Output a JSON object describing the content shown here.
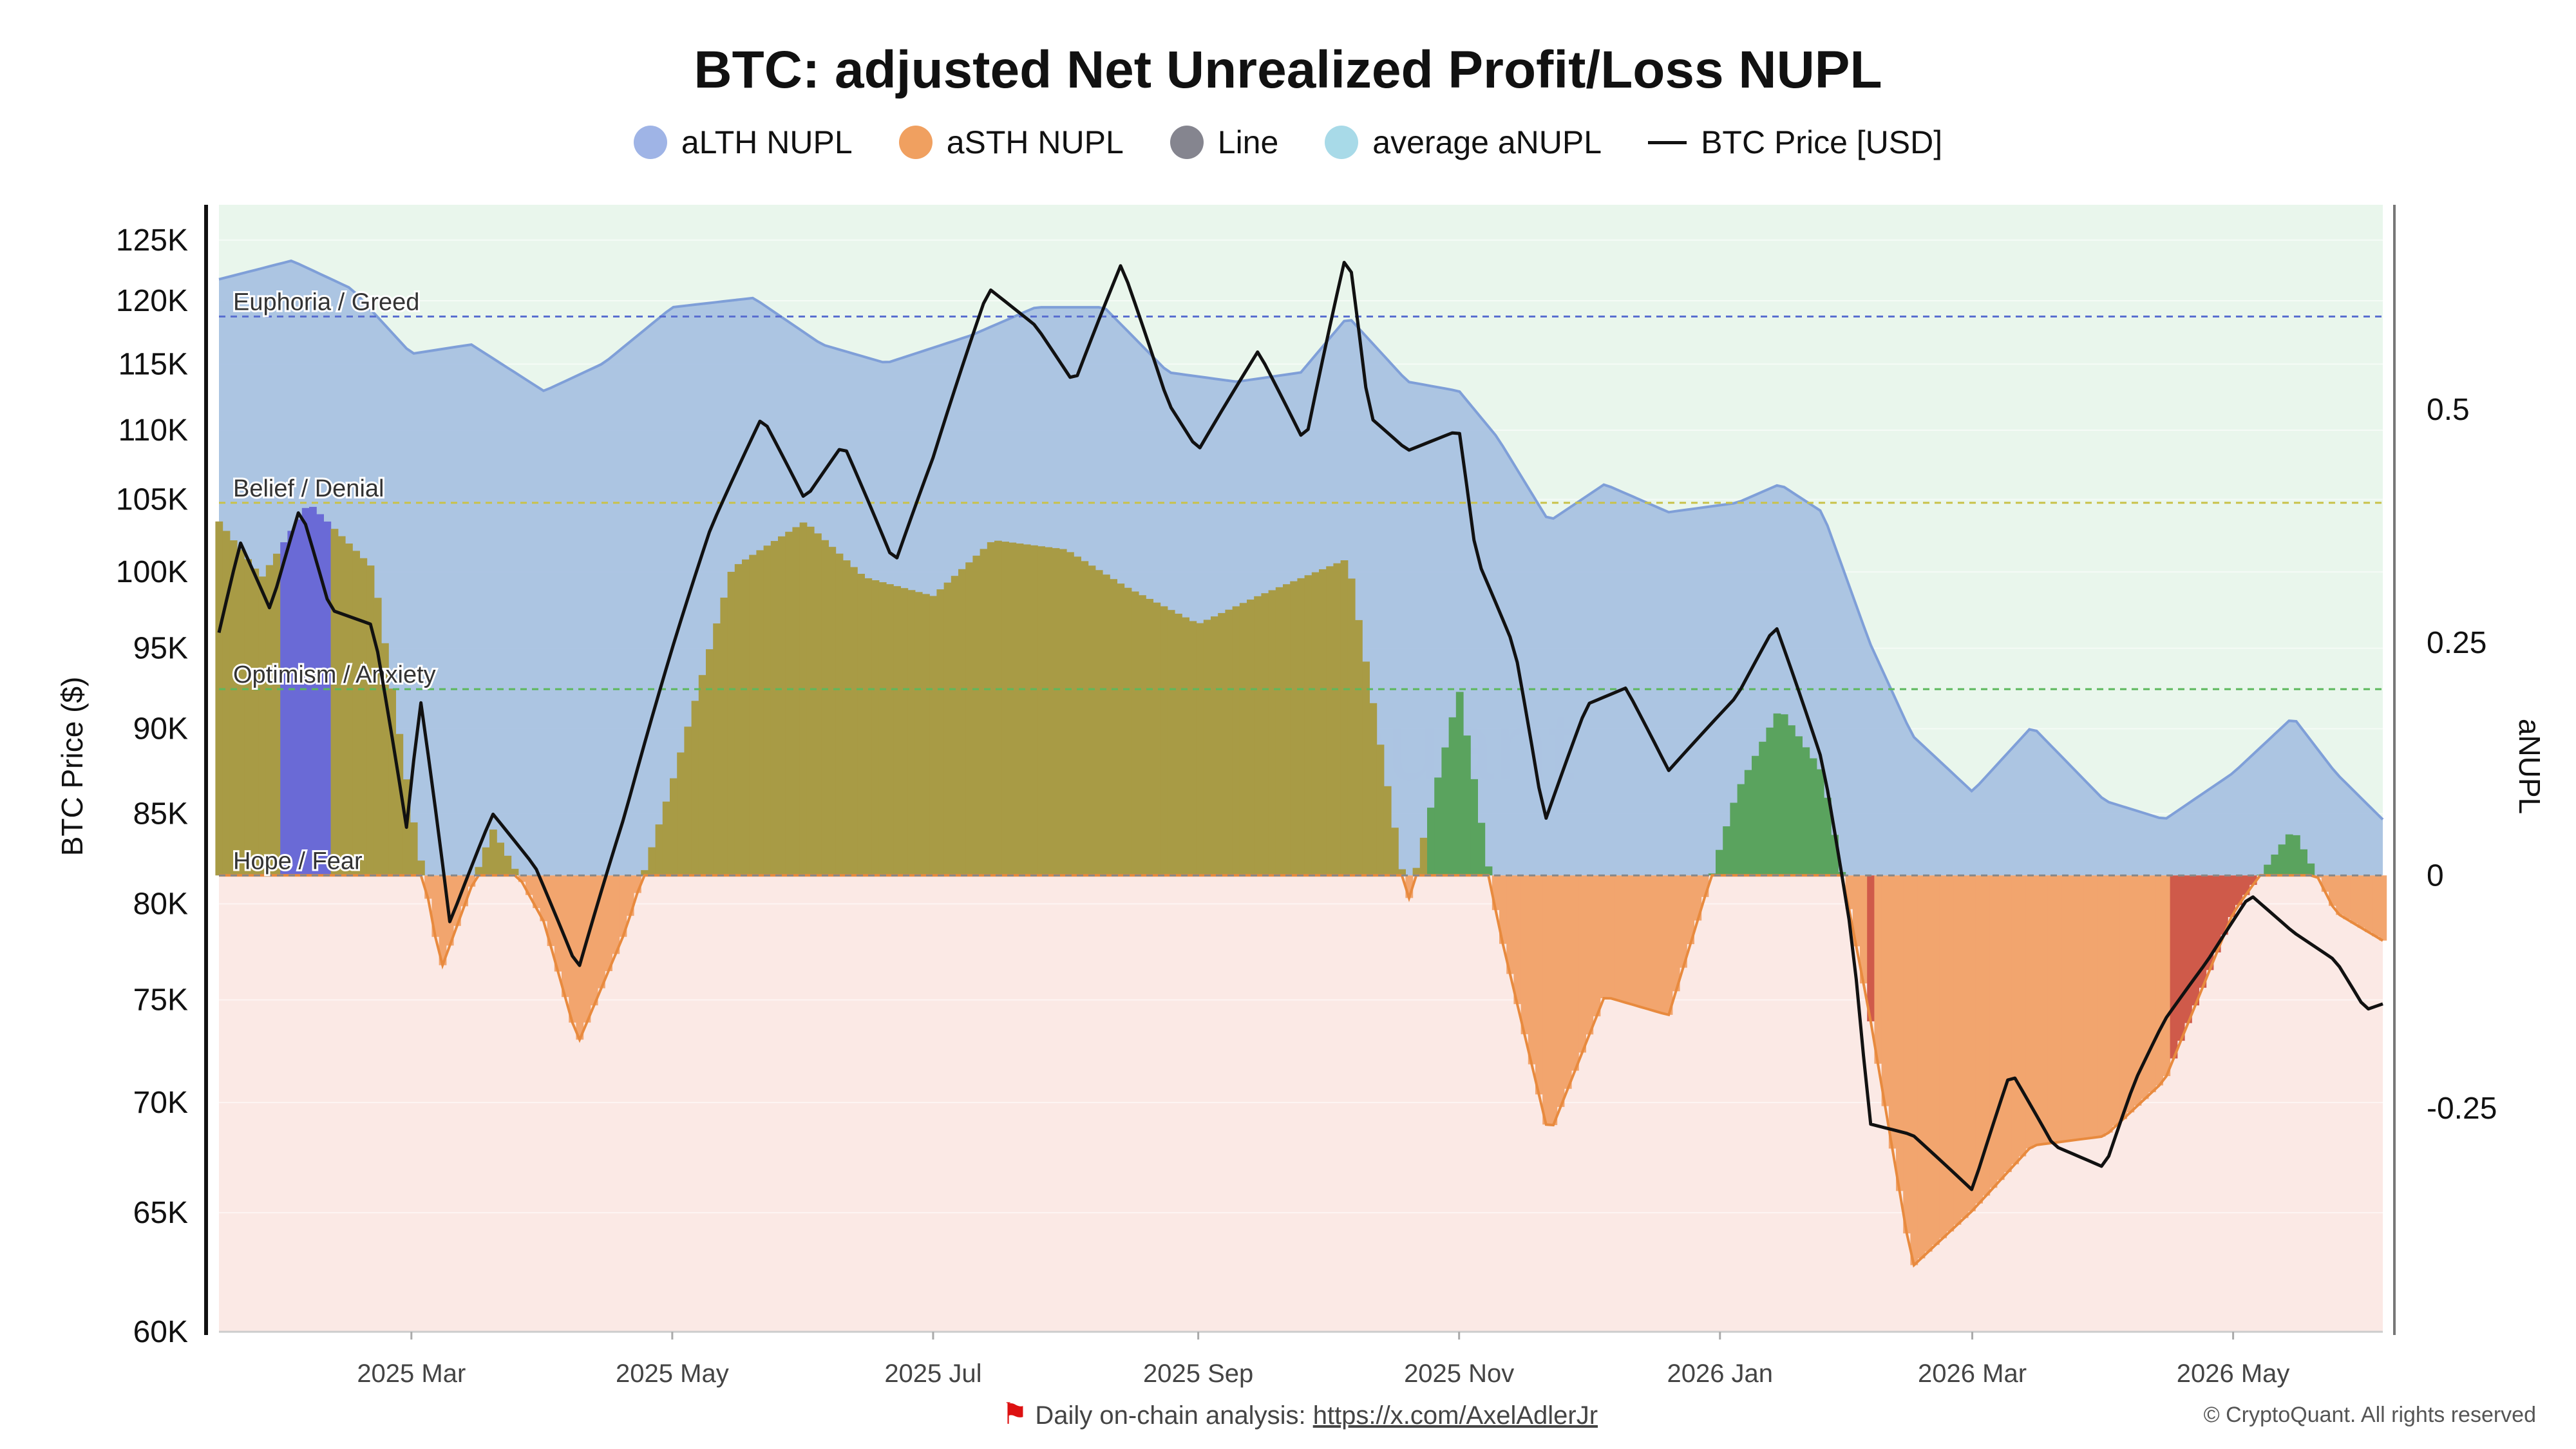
{
  "title": "BTC: adjusted Net Unrealized Profit/Loss NUPL",
  "legend": [
    {
      "label": "aLTH NUPL",
      "color": "#9fb4e6",
      "kind": "dot"
    },
    {
      "label": "aSTH NUPL",
      "color": "#f0a060",
      "kind": "dot"
    },
    {
      "label": "Line",
      "color": "#85858f",
      "kind": "dot"
    },
    {
      "label": "average aNUPL",
      "color": "#a8dae8",
      "kind": "dot"
    },
    {
      "label": "BTC Price [USD]",
      "color": "#111111",
      "kind": "line"
    }
  ],
  "footer": {
    "text": "Daily on-chain analysis:",
    "link": "https://x.com/AxelAdlerJr"
  },
  "copyright": "© CryptoQuant. All rights reserved",
  "watermark": "CryptoQuant",
  "colors": {
    "profit_zone_bg": "#e9f6ec",
    "loss_zone_bg": "#fbe9e5",
    "lth_fill": "#a9c2e2",
    "lth_line": "#7f9fd8",
    "sth_olive": "#a89b45",
    "sth_green": "#5aa35e",
    "sth_orange": "#f2a56e",
    "sth_orange_line": "#e88a3e",
    "sth_red": "#cf5a4a",
    "sth_blue": "#6a6ad6",
    "price_line": "#111111"
  },
  "chart_data": {
    "type": "area",
    "x_axis": {
      "tick_labels": [
        "2025 Mar",
        "2025 May",
        "2025 Jul",
        "2025 Sep",
        "2025 Nov",
        "2026 Jan",
        "2026 Mar",
        "2026 May"
      ],
      "range": [
        "2025-01-15",
        "2026-06-05"
      ]
    },
    "y_axis_left": {
      "label": "BTC Price ($)",
      "scale": "log",
      "range": [
        60000,
        128000
      ],
      "ticks": [
        60000,
        65000,
        70000,
        75000,
        80000,
        85000,
        90000,
        95000,
        100000,
        105000,
        110000,
        115000,
        120000,
        125000
      ],
      "tick_labels": [
        "60K",
        "65K",
        "70K",
        "75K",
        "80K",
        "85K",
        "90K",
        "95K",
        "100K",
        "105K",
        "110K",
        "115K",
        "120K",
        "125K"
      ]
    },
    "y_axis_right": {
      "label": "aNUPL",
      "range": [
        -0.49,
        0.72
      ],
      "ticks": [
        -0.25,
        0,
        0.25,
        0.5
      ],
      "tick_labels": [
        "-0.25",
        "0",
        "0.25",
        "0.5"
      ]
    },
    "zones": [
      {
        "label": "Euphoria / Greed",
        "value": 0.6,
        "color": "#5a6fd0"
      },
      {
        "label": "Belief / Denial",
        "value": 0.4,
        "color": "#c9c24a"
      },
      {
        "label": "Optimism / Anxiety",
        "value": 0.2,
        "color": "#5cb85c"
      },
      {
        "label": "Hope / Fear",
        "value": 0,
        "color": "#888888"
      }
    ],
    "grid": true,
    "legend_position": "top-center",
    "series": [
      {
        "name": "aLTH NUPL",
        "axis": "right",
        "points": [
          [
            "2025-01-15",
            0.64
          ],
          [
            "2025-02-01",
            0.66
          ],
          [
            "2025-02-15",
            0.63
          ],
          [
            "2025-03-01",
            0.56
          ],
          [
            "2025-03-15",
            0.57
          ],
          [
            "2025-04-01",
            0.52
          ],
          [
            "2025-04-15",
            0.55
          ],
          [
            "2025-05-01",
            0.61
          ],
          [
            "2025-05-20",
            0.62
          ],
          [
            "2025-06-05",
            0.57
          ],
          [
            "2025-06-20",
            0.55
          ],
          [
            "2025-07-10",
            0.58
          ],
          [
            "2025-07-25",
            0.61
          ],
          [
            "2025-08-10",
            0.61
          ],
          [
            "2025-08-25",
            0.54
          ],
          [
            "2025-09-10",
            0.53
          ],
          [
            "2025-09-25",
            0.54
          ],
          [
            "2025-10-06",
            0.6
          ],
          [
            "2025-10-20",
            0.53
          ],
          [
            "2025-11-01",
            0.52
          ],
          [
            "2025-11-10",
            0.47
          ],
          [
            "2025-11-22",
            0.38
          ],
          [
            "2025-12-05",
            0.42
          ],
          [
            "2025-12-20",
            0.39
          ],
          [
            "2026-01-05",
            0.4
          ],
          [
            "2026-01-15",
            0.42
          ],
          [
            "2026-01-25",
            0.39
          ],
          [
            "2026-02-05",
            0.25
          ],
          [
            "2026-02-15",
            0.15
          ],
          [
            "2026-03-01",
            0.09
          ],
          [
            "2026-03-15",
            0.16
          ],
          [
            "2026-04-01",
            0.08
          ],
          [
            "2026-04-15",
            0.06
          ],
          [
            "2026-05-01",
            0.11
          ],
          [
            "2026-05-15",
            0.17
          ],
          [
            "2026-05-25",
            0.11
          ],
          [
            "2026-06-05",
            0.06
          ]
        ]
      },
      {
        "name": "aSTH NUPL",
        "axis": "right",
        "points": [
          [
            "2025-01-15",
            0.38
          ],
          [
            "2025-01-25",
            0.32
          ],
          [
            "2025-02-05",
            0.4
          ],
          [
            "2025-02-20",
            0.33
          ],
          [
            "2025-03-01",
            0.07
          ],
          [
            "2025-03-08",
            -0.1
          ],
          [
            "2025-03-20",
            0.05
          ],
          [
            "2025-04-01",
            -0.05
          ],
          [
            "2025-04-09",
            -0.18
          ],
          [
            "2025-04-20",
            -0.06
          ],
          [
            "2025-05-01",
            0.1
          ],
          [
            "2025-05-15",
            0.33
          ],
          [
            "2025-06-01",
            0.38
          ],
          [
            "2025-06-15",
            0.32
          ],
          [
            "2025-07-01",
            0.3
          ],
          [
            "2025-07-15",
            0.36
          ],
          [
            "2025-08-01",
            0.35
          ],
          [
            "2025-08-15",
            0.31
          ],
          [
            "2025-09-01",
            0.27
          ],
          [
            "2025-09-15",
            0.3
          ],
          [
            "2025-10-06",
            0.34
          ],
          [
            "2025-10-20",
            -0.03
          ],
          [
            "2025-11-01",
            0.2
          ],
          [
            "2025-11-10",
            -0.05
          ],
          [
            "2025-11-22",
            -0.28
          ],
          [
            "2025-12-05",
            -0.13
          ],
          [
            "2025-12-20",
            -0.15
          ],
          [
            "2026-01-05",
            0.09
          ],
          [
            "2026-01-15",
            0.18
          ],
          [
            "2026-01-25",
            0.11
          ],
          [
            "2026-02-05",
            -0.15
          ],
          [
            "2026-02-15",
            -0.42
          ],
          [
            "2026-03-01",
            -0.36
          ],
          [
            "2026-03-15",
            -0.29
          ],
          [
            "2026-04-01",
            -0.28
          ],
          [
            "2026-04-15",
            -0.22
          ],
          [
            "2026-05-01",
            -0.04
          ],
          [
            "2026-05-15",
            0.05
          ],
          [
            "2026-05-25",
            -0.04
          ],
          [
            "2026-06-05",
            -0.07
          ]
        ]
      },
      {
        "name": "BTC Price [USD]",
        "axis": "left",
        "points": [
          [
            "2025-01-15",
            96000
          ],
          [
            "2025-01-20",
            102000
          ],
          [
            "2025-01-27",
            97500
          ],
          [
            "2025-02-03",
            104500
          ],
          [
            "2025-02-10",
            97500
          ],
          [
            "2025-02-20",
            96500
          ],
          [
            "2025-02-28",
            84000
          ],
          [
            "2025-03-03",
            92000
          ],
          [
            "2025-03-10",
            79000
          ],
          [
            "2025-03-20",
            85000
          ],
          [
            "2025-03-30",
            82000
          ],
          [
            "2025-04-09",
            76500
          ],
          [
            "2025-04-20",
            85000
          ],
          [
            "2025-05-01",
            95000
          ],
          [
            "2025-05-10",
            103000
          ],
          [
            "2025-05-22",
            111000
          ],
          [
            "2025-06-01",
            105000
          ],
          [
            "2025-06-10",
            109000
          ],
          [
            "2025-06-22",
            100500
          ],
          [
            "2025-07-01",
            108000
          ],
          [
            "2025-07-14",
            121000
          ],
          [
            "2025-07-25",
            118000
          ],
          [
            "2025-08-03",
            113500
          ],
          [
            "2025-08-14",
            123000
          ],
          [
            "2025-08-25",
            112000
          ],
          [
            "2025-09-01",
            108500
          ],
          [
            "2025-09-15",
            116000
          ],
          [
            "2025-09-26",
            109000
          ],
          [
            "2025-10-06",
            124500
          ],
          [
            "2025-10-11",
            111000
          ],
          [
            "2025-10-20",
            108500
          ],
          [
            "2025-11-01",
            110000
          ],
          [
            "2025-11-05",
            101000
          ],
          [
            "2025-11-14",
            95000
          ],
          [
            "2025-11-21",
            84500
          ],
          [
            "2025-12-01",
            91500
          ],
          [
            "2025-12-10",
            92500
          ],
          [
            "2025-12-20",
            87500
          ],
          [
            "2026-01-05",
            92000
          ],
          [
            "2026-01-14",
            96500
          ],
          [
            "2026-01-25",
            88000
          ],
          [
            "2026-02-01",
            78000
          ],
          [
            "2026-02-05",
            69000
          ],
          [
            "2026-02-15",
            68500
          ],
          [
            "2026-03-01",
            66000
          ],
          [
            "2026-03-10",
            71500
          ],
          [
            "2026-03-20",
            68000
          ],
          [
            "2026-04-01",
            67000
          ],
          [
            "2026-04-08",
            71000
          ],
          [
            "2026-04-15",
            74000
          ],
          [
            "2026-04-25",
            77000
          ],
          [
            "2026-05-05",
            80500
          ],
          [
            "2026-05-15",
            78500
          ],
          [
            "2026-05-25",
            77000
          ],
          [
            "2026-06-01",
            74500
          ],
          [
            "2026-06-05",
            74800
          ]
        ]
      }
    ]
  }
}
